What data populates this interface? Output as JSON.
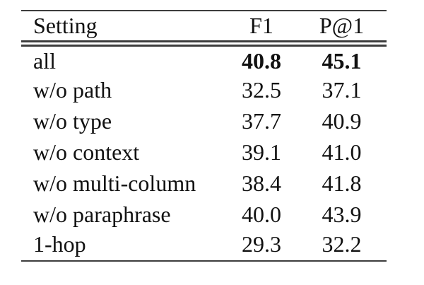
{
  "table": {
    "columns": [
      {
        "label": "Setting"
      },
      {
        "label": "F1"
      },
      {
        "label": "P@1"
      }
    ],
    "rows": [
      {
        "setting": "all",
        "f1": "40.8",
        "p1": "45.1",
        "bold": true
      },
      {
        "setting": "w/o path",
        "f1": "32.5",
        "p1": "37.1",
        "bold": false
      },
      {
        "setting": "w/o type",
        "f1": "37.7",
        "p1": "40.9",
        "bold": false
      },
      {
        "setting": "w/o context",
        "f1": "39.1",
        "p1": "41.0",
        "bold": false
      },
      {
        "setting": "w/o multi-column",
        "f1": "38.4",
        "p1": "41.8",
        "bold": false
      },
      {
        "setting": "w/o paraphrase",
        "f1": "40.0",
        "p1": "43.9",
        "bold": false
      },
      {
        "setting": "1-hop",
        "f1": "29.3",
        "p1": "32.2",
        "bold": false
      }
    ],
    "rule_color": "#3d3d3d",
    "text_color": "#111111",
    "background_color": "#ffffff"
  },
  "chart_data": {
    "type": "table",
    "columns": [
      "Setting",
      "F1",
      "P@1"
    ],
    "rows": [
      [
        "all",
        40.8,
        45.1
      ],
      [
        "w/o path",
        32.5,
        37.1
      ],
      [
        "w/o type",
        37.7,
        40.9
      ],
      [
        "w/o context",
        39.1,
        41.0
      ],
      [
        "w/o multi-column",
        38.4,
        41.8
      ],
      [
        "w/o paraphrase",
        40.0,
        43.9
      ],
      [
        "1-hop",
        29.3,
        32.2
      ]
    ],
    "notes": "Ablation-style results table; values in the 'all' row are bold; booktabs rules: single top rule, double rule below header, single bottom rule"
  }
}
